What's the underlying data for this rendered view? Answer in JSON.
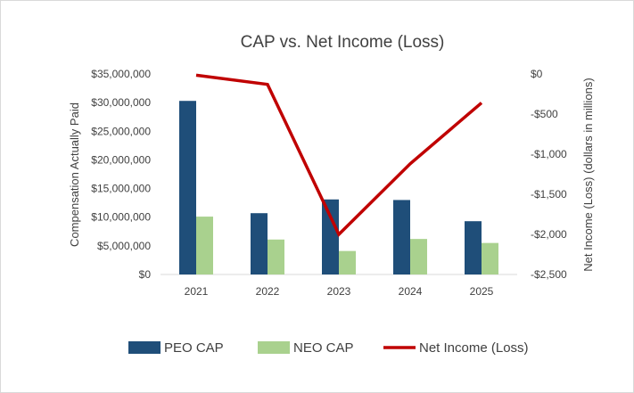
{
  "chart_data": {
    "type": "bar",
    "title": "CAP vs. Net Income (Loss)",
    "categories": [
      "2021",
      "2022",
      "2023",
      "2024",
      "2025"
    ],
    "series": [
      {
        "name": "PEO CAP",
        "kind": "bar",
        "axis": "left",
        "color": "#1f4e79",
        "values": [
          30300000,
          10700000,
          13100000,
          13000000,
          9300000
        ]
      },
      {
        "name": "NEO CAP",
        "kind": "bar",
        "axis": "left",
        "color": "#a9d18e",
        "values": [
          10100000,
          6100000,
          4100000,
          6200000,
          5500000
        ]
      },
      {
        "name": "Net Income (Loss)",
        "kind": "line",
        "axis": "right",
        "color": "#c00000",
        "values": [
          -15,
          -130,
          -2000,
          -1120,
          -360
        ]
      }
    ],
    "left_axis": {
      "label": "Compensation Actually Paid",
      "ylim": [
        0,
        35000000
      ],
      "ticks": [
        0,
        5000000,
        10000000,
        15000000,
        20000000,
        25000000,
        30000000,
        35000000
      ],
      "tick_labels": [
        "$0",
        "$5,000,000",
        "$10,000,000",
        "$15,000,000",
        "$20,000,000",
        "$25,000,000",
        "$30,000,000",
        "$35,000,000"
      ]
    },
    "right_axis": {
      "label": "Net Income (Loss) (dollars in millions)",
      "ylim": [
        -2500,
        0
      ],
      "ticks": [
        0,
        -500,
        -1000,
        -1500,
        -2000,
        -2500
      ],
      "tick_labels": [
        "$0",
        "-$500",
        "-$1,000",
        "-$1,500",
        "-$2,000",
        "-$2,500"
      ]
    },
    "legend_position": "bottom",
    "grid": false
  }
}
